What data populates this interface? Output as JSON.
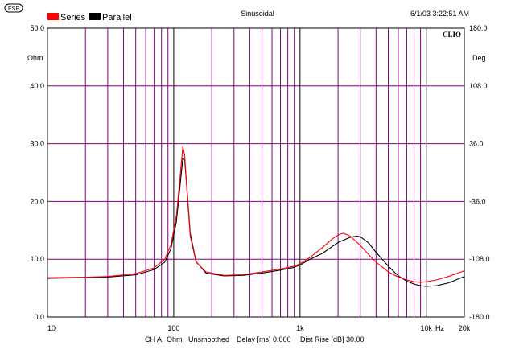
{
  "logo_text": "ESP",
  "chart_data": {
    "type": "line",
    "title": "Sinusoidal",
    "timestamp": "6/1/03 3:22:51 AM",
    "brand": "CLIO",
    "legend": {
      "placement": "top-left",
      "entries": [
        {
          "name": "Series",
          "color": "#ff0000"
        },
        {
          "name": "Parallel",
          "color": "#000000"
        }
      ]
    },
    "footer": {
      "channel": "CH A",
      "unit": "Ohm",
      "smoothing": "Unsmoothed",
      "delay": "Delay [ms] 0.000",
      "dist_rise": "Dist Rise [dB] 30.00"
    },
    "x_axis": {
      "scale": "log",
      "range": [
        10,
        20000
      ],
      "unit": "Hz",
      "ticks": [
        {
          "value": 10,
          "label": "10"
        },
        {
          "value": 100,
          "label": "100"
        },
        {
          "value": 1000,
          "label": "1k"
        },
        {
          "value": 10000,
          "label": "10k"
        },
        {
          "value": 20000,
          "label": "20k"
        }
      ]
    },
    "y_axis_left": {
      "label": "Ohm",
      "range": [
        0,
        50
      ],
      "ticks": [
        {
          "value": 0,
          "label": "0.0"
        },
        {
          "value": 10,
          "label": "10.0"
        },
        {
          "value": 20,
          "label": "20.0"
        },
        {
          "value": 30,
          "label": "30.0"
        },
        {
          "value": 40,
          "label": "40.0"
        },
        {
          "value": 50,
          "label": "50.0"
        }
      ]
    },
    "y_axis_right": {
      "label": "Deg",
      "range": [
        -180,
        180
      ],
      "ticks": [
        {
          "value": 180,
          "label": "180.0"
        },
        {
          "value": 108,
          "label": "108.0"
        },
        {
          "value": 36,
          "label": "36.0"
        },
        {
          "value": -36,
          "label": "-36.0"
        },
        {
          "value": -108,
          "label": "-108.0"
        },
        {
          "value": -180,
          "label": "-180.0"
        }
      ]
    },
    "grid": true,
    "series": [
      {
        "name": "Series",
        "color": "#ff0000",
        "x": [
          10,
          20,
          30,
          50,
          70,
          85,
          95,
          105,
          112,
          118,
          122,
          128,
          135,
          150,
          180,
          250,
          350,
          500,
          700,
          900,
          1000,
          1200,
          1500,
          1800,
          2000,
          2200,
          2500,
          3000,
          3500,
          4000,
          5000,
          6000,
          7000,
          8000,
          9000,
          10000,
          12000,
          15000,
          20000
        ],
        "y": [
          6.8,
          6.9,
          7.0,
          7.5,
          8.5,
          10.0,
          12.5,
          17.5,
          24.0,
          29.5,
          28.0,
          21.0,
          14.0,
          9.5,
          7.8,
          7.2,
          7.3,
          7.8,
          8.3,
          8.8,
          9.2,
          10.3,
          12.0,
          13.5,
          14.2,
          14.5,
          14.0,
          12.4,
          10.8,
          9.5,
          7.8,
          6.9,
          6.4,
          6.1,
          6.0,
          6.1,
          6.4,
          7.0,
          8.0
        ]
      },
      {
        "name": "Parallel",
        "color": "#000000",
        "x": [
          10,
          20,
          30,
          50,
          70,
          85,
          95,
          105,
          112,
          118,
          122,
          128,
          135,
          150,
          180,
          250,
          350,
          500,
          700,
          900,
          1000,
          1200,
          1500,
          1800,
          2000,
          2500,
          2800,
          3000,
          3500,
          4000,
          5000,
          6000,
          7000,
          8000,
          9000,
          10000,
          12000,
          15000,
          20000
        ],
        "y": [
          6.7,
          6.8,
          6.9,
          7.3,
          8.2,
          9.5,
          11.8,
          16.5,
          22.5,
          27.5,
          27.2,
          21.5,
          14.5,
          9.6,
          7.6,
          7.1,
          7.2,
          7.6,
          8.1,
          8.6,
          9.0,
          10.0,
          11.0,
          12.2,
          12.9,
          13.8,
          14.0,
          13.9,
          12.8,
          11.2,
          8.8,
          7.1,
          6.2,
          5.7,
          5.4,
          5.3,
          5.4,
          5.9,
          7.0
        ]
      }
    ]
  }
}
